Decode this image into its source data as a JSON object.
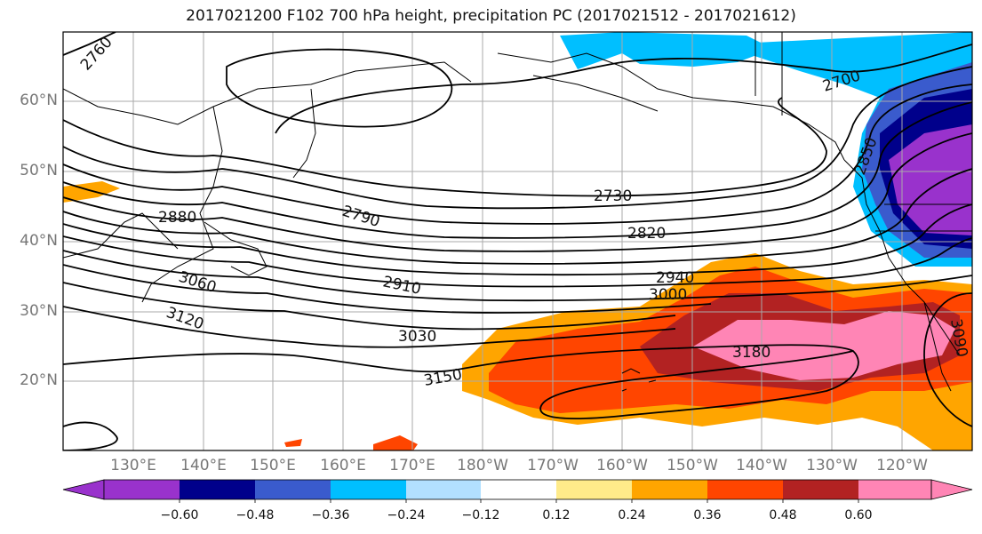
{
  "title": "2017021200 F102 700 hPa height, precipitation PC (2017021512 - 2017021612)",
  "lat_labels": [
    "60°N",
    "50°N",
    "40°N",
    "30°N",
    "20°N"
  ],
  "lon_labels": [
    "130°E",
    "140°E",
    "150°E",
    "160°E",
    "170°E",
    "180°W",
    "170°W",
    "160°W",
    "150°W",
    "140°W",
    "130°W",
    "120°W"
  ],
  "contour_labels": [
    "2760",
    "2700",
    "2820",
    "2850",
    "2880",
    "2790",
    "2730",
    "3060",
    "2910",
    "2940",
    "3000",
    "3120",
    "3030",
    "3150",
    "3180",
    "3090"
  ],
  "colorbar": {
    "colors": [
      "#9932CC",
      "#00008B",
      "#3A5BCD",
      "#00BFFF",
      "#B2E0FF",
      "#FFFFFF",
      "#FFEB8A",
      "#FFA500",
      "#FF4500",
      "#B22222",
      "#FF85B5"
    ],
    "tick_labels": [
      "−0.60",
      "−0.48",
      "−0.36",
      "−0.24",
      "−0.12",
      "0.12",
      "0.24",
      "0.36",
      "0.48",
      "0.60"
    ]
  }
}
